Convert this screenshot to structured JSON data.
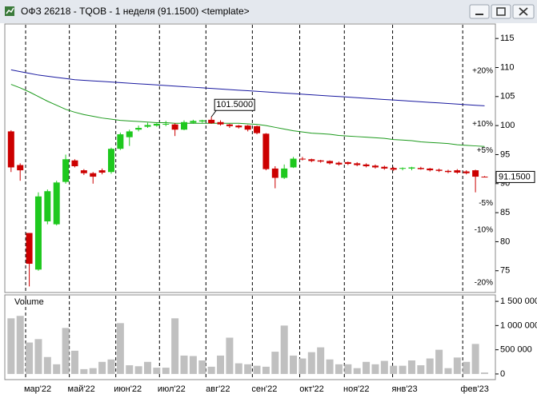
{
  "window": {
    "title": "ОФЗ 26218 - TQOB - 1 неделя (91.1500) <template>"
  },
  "chart_data": [
    {
      "type": "candlestick",
      "categories": [
        null,
        null,
        null,
        null,
        null,
        null,
        null,
        null,
        null,
        null,
        null,
        null,
        null,
        null,
        null,
        null,
        null,
        null,
        null,
        null,
        null,
        null,
        null,
        null,
        null,
        null,
        null,
        null,
        null,
        null,
        null,
        null,
        null,
        null,
        null,
        null,
        null,
        null,
        null,
        null,
        null,
        null,
        null,
        null,
        null,
        null,
        null,
        null,
        null,
        null,
        null,
        null,
        null
      ],
      "open": [
        99,
        93.2,
        81.5,
        75.2,
        83.5,
        83,
        90.3,
        94,
        92.3,
        91.8,
        92.3,
        92,
        96,
        98,
        99.3,
        99.8,
        100,
        100.2,
        100.2,
        99.3,
        100.5,
        100.7,
        101,
        100.6,
        100.2,
        100,
        100,
        99.9,
        98.6,
        92.6,
        91,
        92.8,
        94.3,
        94.2,
        94,
        93.9,
        93.6,
        93.7,
        93.5,
        93.3,
        93.1,
        92.9,
        92.7,
        92.6,
        92.6,
        92.7,
        92.6,
        92.4,
        92.2,
        92.3,
        92.1,
        92.3,
        91.2
      ],
      "high": [
        99.2,
        93.5,
        81.5,
        88.5,
        89,
        90.5,
        95,
        94.2,
        92.5,
        92,
        92.6,
        96.2,
        98.8,
        99.3,
        100,
        100.5,
        100.4,
        100.8,
        100.4,
        100.9,
        101,
        101,
        101.5,
        100.9,
        100.3,
        100.1,
        100.1,
        100,
        98.7,
        93,
        93.3,
        94.6,
        94.6,
        94.3,
        94.1,
        94,
        93.8,
        93.8,
        93.7,
        93.5,
        93.3,
        93.1,
        92.9,
        92.8,
        92.9,
        92.9,
        92.7,
        92.6,
        92.4,
        92.5,
        92.3,
        92.4,
        91.3
      ],
      "low": [
        92,
        90.5,
        72.3,
        75,
        83,
        82.8,
        90,
        92.8,
        91.5,
        90,
        91.6,
        91.7,
        95.8,
        96.5,
        99,
        99.6,
        99.8,
        99.9,
        98.2,
        99.2,
        100.3,
        100.5,
        100.3,
        100,
        99.6,
        99.5,
        99,
        98.5,
        92.3,
        89.2,
        90.8,
        92.7,
        94,
        93.7,
        93.6,
        93.3,
        93.1,
        93.2,
        93,
        92.8,
        92.6,
        92.4,
        92.2,
        92.3,
        92.3,
        92.4,
        92.1,
        92,
        91.8,
        91.7,
        91.6,
        88.5,
        91.1
      ],
      "close": [
        92.8,
        92.3,
        76.2,
        87.8,
        88.7,
        90.2,
        94.2,
        93,
        91.8,
        91.2,
        91.9,
        96,
        98.5,
        99,
        99.6,
        100.1,
        100.3,
        100.3,
        99.3,
        100.6,
        100.8,
        100.9,
        100.4,
        100.2,
        99.9,
        99.7,
        99.3,
        98.7,
        92.5,
        91,
        92.6,
        94.3,
        94.2,
        93.9,
        93.8,
        93.5,
        93.3,
        93.4,
        93.2,
        93,
        92.8,
        92.6,
        92.4,
        92.7,
        92.8,
        92.5,
        92.3,
        92.2,
        92,
        91.9,
        91.8,
        91.2,
        91.15
      ],
      "up_color": "#1ec81e",
      "down_color": "#cc0000",
      "series": [
        {
          "color": "#1a1aa0",
          "values": [
            109.6,
            109.3,
            109.0,
            108.7,
            108.5,
            108.3,
            108.1,
            107.9,
            107.8,
            107.7,
            107.6,
            107.5,
            107.4,
            107.3,
            107.2,
            107.1,
            107.0,
            106.9,
            106.8,
            106.7,
            106.6,
            106.5,
            106.4,
            106.3,
            106.2,
            106.1,
            106.0,
            105.9,
            105.8,
            105.7,
            105.6,
            105.5,
            105.4,
            105.3,
            105.2,
            105.1,
            105.0,
            104.9,
            104.8,
            104.7,
            104.6,
            104.5,
            104.4,
            104.3,
            104.2,
            104.1,
            104.0,
            103.9,
            103.8,
            103.7,
            103.6,
            103.5,
            103.4
          ]
        },
        {
          "color": "#1c9a1c",
          "values": [
            107.1,
            106.5,
            105.8,
            105.0,
            104.2,
            103.5,
            102.8,
            102.3,
            101.9,
            101.6,
            101.3,
            101.1,
            100.9,
            100.8,
            100.7,
            100.6,
            100.5,
            100.5,
            100.4,
            100.4,
            100.4,
            100.4,
            100.4,
            100.4,
            100.4,
            100.4,
            100.3,
            100.2,
            100.0,
            99.7,
            99.4,
            99.1,
            98.9,
            98.7,
            98.6,
            98.5,
            98.3,
            98.2,
            98.1,
            98.0,
            97.9,
            97.8,
            97.6,
            97.5,
            97.4,
            97.2,
            97.1,
            97.0,
            96.9,
            96.7,
            96.6,
            96.5,
            96.4
          ]
        }
      ],
      "xlim": [
        -0.6,
        53.1
      ],
      "ylim": [
        71.25,
        117.5
      ],
      "xticks": [
        {
          "value": 1.6,
          "label": "мар'22"
        },
        {
          "value": 6.4,
          "label": "май'22"
        },
        {
          "value": 11.5,
          "label": "июн'22"
        },
        {
          "value": 16.3,
          "label": "июл'22"
        },
        {
          "value": 21.4,
          "label": "авг'22"
        },
        {
          "value": 26.5,
          "label": "сен'22"
        },
        {
          "value": 31.7,
          "label": "окт'22"
        },
        {
          "value": 36.6,
          "label": "ноя'22"
        },
        {
          "value": 41.9,
          "label": "янв'23"
        },
        {
          "value": 49.6,
          "label": "фев'23"
        }
      ],
      "yticks": [
        75,
        80,
        85,
        90,
        95,
        100,
        105,
        110,
        115
      ],
      "levels": [
        {
          "value": 109.38,
          "label": "+20%",
          "color": "#1c9a1c"
        },
        {
          "value": 100.27,
          "label": "+10%",
          "color": "#1c9a1c"
        },
        {
          "value": 95.71,
          "label": "+5%",
          "color": "#1c9a1c"
        },
        {
          "value": 86.59,
          "label": "-5%",
          "color": "#b00000"
        },
        {
          "value": 82.04,
          "label": "-10%",
          "color": "#b00000"
        },
        {
          "value": 72.92,
          "label": "-20%",
          "color": "#b00000"
        }
      ],
      "last_price": {
        "value": 91.15,
        "label": "91.1500"
      },
      "annotations": [
        {
          "x": 22,
          "value": 101.5,
          "label": "101.5000"
        }
      ]
    },
    {
      "type": "bar",
      "title": "Volume",
      "color": "#c0c0c0",
      "values": [
        1150000,
        1200000,
        650000,
        720000,
        350000,
        200000,
        950000,
        480000,
        100000,
        120000,
        250000,
        300000,
        1050000,
        180000,
        160000,
        250000,
        130000,
        130000,
        1150000,
        380000,
        370000,
        280000,
        150000,
        380000,
        750000,
        220000,
        200000,
        170000,
        150000,
        460000,
        1000000,
        380000,
        320000,
        450000,
        550000,
        300000,
        200000,
        200000,
        120000,
        250000,
        200000,
        270000,
        170000,
        170000,
        280000,
        180000,
        320000,
        500000,
        120000,
        340000,
        250000,
        620000,
        30000
      ],
      "ylim": [
        -116667,
        1633333
      ],
      "yticks": [
        0,
        {
          "value": 500000,
          "label": "500 000"
        },
        {
          "value": 1000000,
          "label": "1 000 000"
        },
        {
          "value": 1500000,
          "label": "1 500 000"
        }
      ]
    }
  ]
}
